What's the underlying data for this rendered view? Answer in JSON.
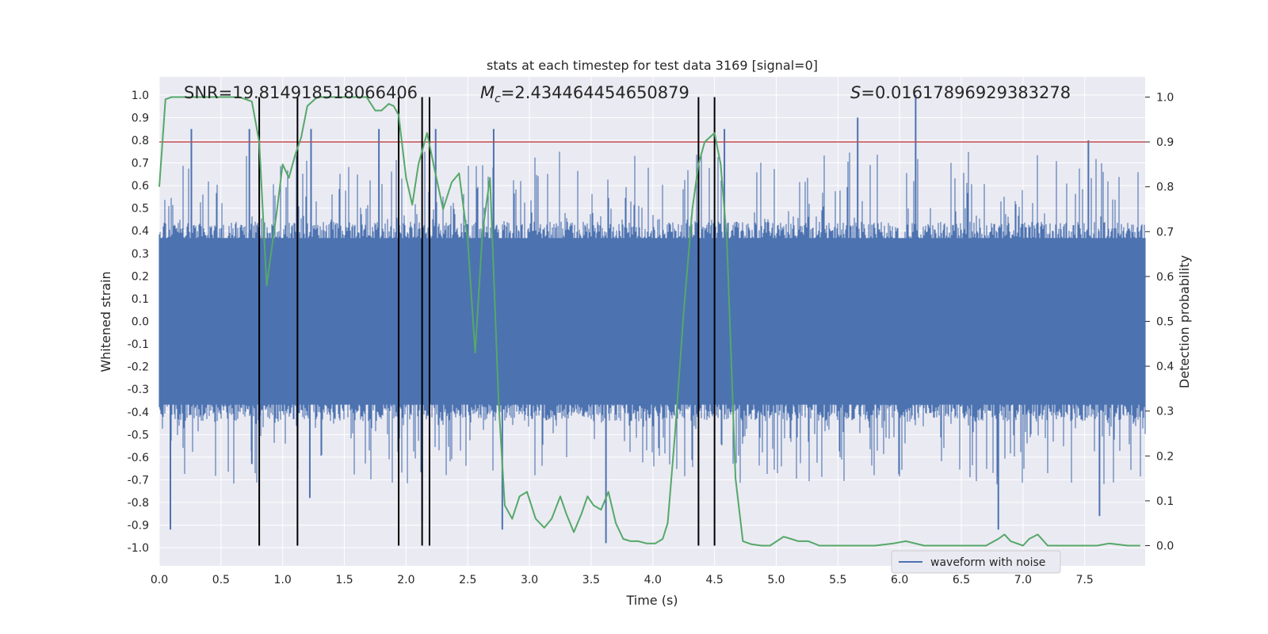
{
  "chart_data": {
    "type": "line",
    "title": "stats at each timestep for test data 3169 [signal=0]",
    "xlabel": "Time (s)",
    "ylabel_left": "Whitened strain",
    "ylabel_right": "Detection probability",
    "xlim": [
      0.0,
      7.99
    ],
    "ylim_left": [
      -1.08,
      1.08
    ],
    "ylim_right": [
      -0.045,
      1.045
    ],
    "x_ticks": [
      "0.0",
      "0.5",
      "1.0",
      "1.5",
      "2.0",
      "2.5",
      "3.0",
      "3.5",
      "4.0",
      "4.5",
      "5.0",
      "5.5",
      "6.0",
      "6.5",
      "7.0",
      "7.5"
    ],
    "y_left_ticks": [
      "1.0",
      "0.9",
      "0.8",
      "0.7",
      "0.6",
      "0.5",
      "0.4",
      "0.3",
      "0.2",
      "0.1",
      "0.0",
      "-0.1",
      "-0.2",
      "-0.3",
      "-0.4",
      "-0.5",
      "-0.6",
      "-0.7",
      "-0.8",
      "-0.9",
      "-1.0"
    ],
    "y_right_ticks": [
      "1.0",
      "0.9",
      "0.8",
      "0.7",
      "0.6",
      "0.5",
      "0.4",
      "0.3",
      "0.2",
      "0.1",
      "0.0"
    ],
    "threshold": 0.9,
    "stats": {
      "snr": "SNR=19.814918518066406",
      "mc_symbol": "M",
      "mc_sub": "c",
      "mc_value": "=2.434464454650879",
      "s_symbol": "S",
      "s_value": "=0.01617896929383278"
    },
    "legend": {
      "label": "waveform with noise",
      "position": "lower-right"
    },
    "vertical_lines": [
      0.81,
      1.12,
      1.94,
      2.13,
      2.19,
      4.37,
      4.5
    ],
    "series": [
      {
        "name": "waveform with noise",
        "axis": "left",
        "color": "#4c72b0",
        "style": "dense noise envelope",
        "typical_amplitude": 0.4,
        "spike_peaks_upper": [
          [
            0.26,
            0.85
          ],
          [
            0.73,
            0.85
          ],
          [
            1.23,
            0.85
          ],
          [
            1.78,
            0.85
          ],
          [
            2.24,
            0.85
          ],
          [
            2.71,
            0.85
          ],
          [
            4.58,
            0.85
          ],
          [
            5.66,
            0.9
          ],
          [
            6.13,
            1.0
          ],
          [
            7.53,
            0.8
          ]
        ],
        "spike_peaks_lower": [
          [
            0.09,
            -0.92
          ],
          [
            0.75,
            -0.63
          ],
          [
            1.22,
            -0.78
          ],
          [
            2.13,
            -0.88
          ],
          [
            2.78,
            -0.92
          ],
          [
            3.62,
            -0.98
          ],
          [
            6.8,
            -0.92
          ],
          [
            7.62,
            -0.86
          ]
        ]
      },
      {
        "name": "detection probability",
        "axis": "right",
        "color": "#55a868",
        "x": [
          0.0,
          0.05,
          0.1,
          0.2,
          0.35,
          0.5,
          0.65,
          0.75,
          0.81,
          0.87,
          0.95,
          1.0,
          1.05,
          1.1,
          1.15,
          1.2,
          1.28,
          1.4,
          1.55,
          1.68,
          1.75,
          1.8,
          1.86,
          1.9,
          1.94,
          2.0,
          2.05,
          2.1,
          2.17,
          2.23,
          2.3,
          2.37,
          2.43,
          2.5,
          2.56,
          2.62,
          2.68,
          2.75,
          2.8,
          2.86,
          2.92,
          2.98,
          3.05,
          3.12,
          3.18,
          3.25,
          3.3,
          3.36,
          3.42,
          3.47,
          3.52,
          3.58,
          3.64,
          3.7,
          3.76,
          3.82,
          3.88,
          3.95,
          4.02,
          4.08,
          4.12,
          4.18,
          4.25,
          4.32,
          4.37,
          4.42,
          4.5,
          4.55,
          4.6,
          4.67,
          4.73,
          4.8,
          4.88,
          4.95,
          5.06,
          5.12,
          5.18,
          5.26,
          5.35,
          5.45,
          5.6,
          5.8,
          5.95,
          6.05,
          6.2,
          6.4,
          6.6,
          6.7,
          6.8,
          6.85,
          6.9,
          7.0,
          7.05,
          7.12,
          7.2,
          7.35,
          7.5,
          7.6,
          7.7,
          7.85,
          7.95
        ],
        "y": [
          0.8,
          0.995,
          1.0,
          1.0,
          1.0,
          1.0,
          1.0,
          0.99,
          0.9,
          0.58,
          0.74,
          0.85,
          0.82,
          0.87,
          0.91,
          0.98,
          1.0,
          1.0,
          1.0,
          1.0,
          0.97,
          0.97,
          0.985,
          0.98,
          0.96,
          0.82,
          0.76,
          0.85,
          0.92,
          0.84,
          0.75,
          0.81,
          0.83,
          0.68,
          0.43,
          0.7,
          0.82,
          0.32,
          0.09,
          0.06,
          0.11,
          0.12,
          0.06,
          0.04,
          0.06,
          0.11,
          0.07,
          0.03,
          0.07,
          0.11,
          0.09,
          0.08,
          0.12,
          0.05,
          0.015,
          0.01,
          0.01,
          0.005,
          0.005,
          0.015,
          0.05,
          0.25,
          0.52,
          0.75,
          0.85,
          0.9,
          0.92,
          0.85,
          0.68,
          0.15,
          0.01,
          0.003,
          0.0,
          0.0,
          0.02,
          0.015,
          0.01,
          0.01,
          0.0,
          0.0,
          0.0,
          0.0,
          0.005,
          0.01,
          0.0,
          0.0,
          0.0,
          0.0,
          0.015,
          0.025,
          0.01,
          0.0,
          0.015,
          0.025,
          0.0,
          0.0,
          0.0,
          0.0,
          0.005,
          0.0,
          0.0
        ]
      }
    ]
  }
}
